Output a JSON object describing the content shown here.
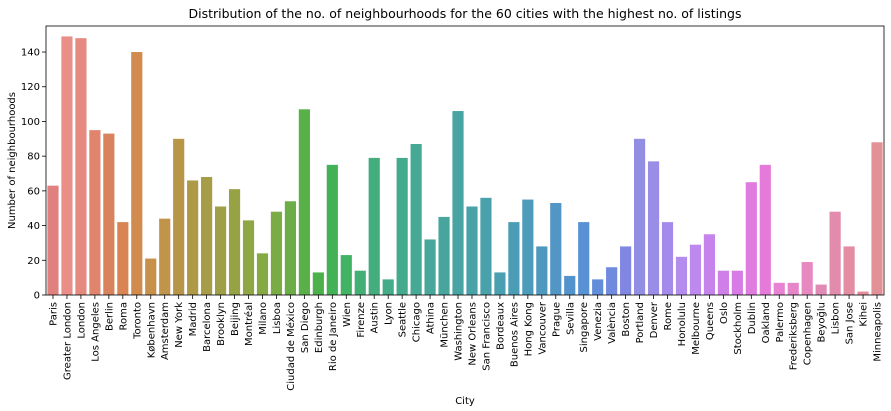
{
  "chart_data": {
    "type": "bar",
    "title": "Distribution of the no. of neighbourhoods for the 60 cities with the highest no. of listings",
    "xlabel": "City",
    "ylabel": "Number of neighbourhoods",
    "ylim": [
      0,
      155
    ],
    "yticks": [
      0,
      20,
      40,
      60,
      80,
      100,
      120,
      140
    ],
    "grid": false,
    "categories": [
      "Paris",
      "Greater London",
      "London",
      "Los Angeles",
      "Berlin",
      "Roma",
      "Toronto",
      "København",
      "Amsterdam",
      "New York",
      "Madrid",
      "Barcelona",
      "Brooklyn",
      "Beijing",
      "Montréal",
      "Milano",
      "Lisboa",
      "Ciudad de México",
      "San Diego",
      "Edinburgh",
      "Rio de Janeiro",
      "Wien",
      "Firenze",
      "Austin",
      "Lyon",
      "Seattle",
      "Chicago",
      "Athina",
      "München",
      "Washington",
      "New Orleans",
      "San Francisco",
      "Bordeaux",
      "Buenos Aires",
      "Hong Kong",
      "Vancouver",
      "Prague",
      "Sevilla",
      "Singapore",
      "Venezia",
      "València",
      "Boston",
      "Portland",
      "Denver",
      "Rome",
      "Honolulu",
      "Melbourne",
      "Queens",
      "Oslo",
      "Stockholm",
      "Dublin",
      "Oakland",
      "Palermo",
      "Frederiksberg",
      "Copenhagen",
      "Beyoğlu",
      "Lisbon",
      "San Jose",
      "Kihei",
      "Minneapolis"
    ],
    "values": [
      63,
      149,
      148,
      95,
      93,
      42,
      140,
      21,
      44,
      90,
      66,
      68,
      51,
      61,
      43,
      24,
      48,
      54,
      107,
      13,
      75,
      23,
      14,
      79,
      9,
      79,
      87,
      32,
      45,
      106,
      51,
      56,
      13,
      42,
      55,
      28,
      53,
      11,
      42,
      9,
      16,
      28,
      90,
      77,
      42,
      22,
      29,
      35,
      14,
      14,
      65,
      75,
      7,
      7,
      19,
      6,
      48,
      28,
      2,
      88
    ],
    "colors": [
      "#e1817f",
      "#ea8f88",
      "#e6897f",
      "#e0856b",
      "#d9835c",
      "#d98553",
      "#d28b4e",
      "#c8914a",
      "#c0944b",
      "#b89648",
      "#ae9a46",
      "#a79c48",
      "#9e9f47",
      "#97a245",
      "#8ea744",
      "#85aa44",
      "#7aab45",
      "#6bae47",
      "#5ab048",
      "#4cb14b",
      "#43b155",
      "#42b264",
      "#42af75",
      "#43ad7e",
      "#44ac88",
      "#44aa8e",
      "#45a995",
      "#46a79a",
      "#47a59e",
      "#48a4a3",
      "#48a2a7",
      "#49a1ab",
      "#4a9fb0",
      "#4b9db5",
      "#4d9bba",
      "#4f99bf",
      "#5196c5",
      "#5393cc",
      "#5891d4",
      "#628dda",
      "#708ae0",
      "#7f87e3",
      "#918ee4",
      "#9a8de7",
      "#a48beb",
      "#b38cee",
      "#bd89ee",
      "#c683ec",
      "#cf7fe8",
      "#d87be6",
      "#e07ce0",
      "#e67ada",
      "#e883d3",
      "#e685c9",
      "#e788c0",
      "#e28ab6",
      "#e28bad",
      "#e38da3",
      "#e38e9a",
      "#e39196"
    ]
  }
}
